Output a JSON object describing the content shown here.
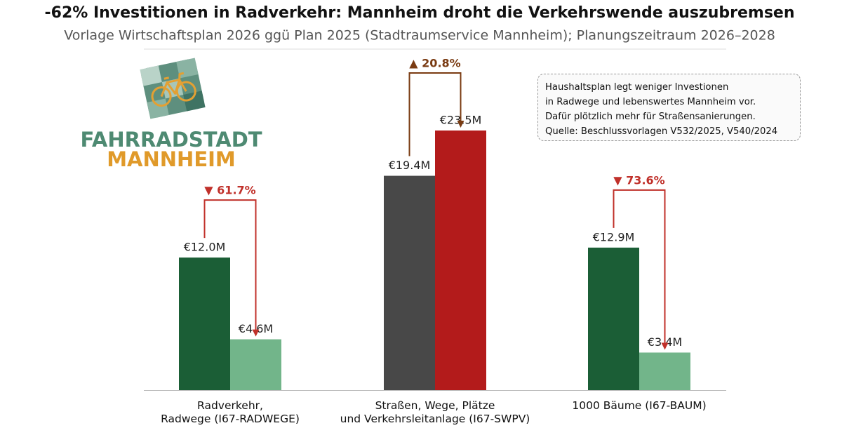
{
  "chart_data": {
    "type": "bar",
    "title": "-62% Investitionen in Radverkehr: Mannheim droht die Verkehrswende auszubremsen",
    "subtitle": "Vorlage Wirtschaftsplan 2026 ggü Plan 2025 (Stadtraumservice Mannheim); Planungszeitraum 2026–2028",
    "categories": [
      "Radverkehr,\nRadwege (I67-RADWEGE)",
      "Straßen, Wege, Plätze\nund Verkehrsleitanlage (I67-SWPV)",
      "1000 Bäume (I67-BAUM)"
    ],
    "series": [
      {
        "colors": [
          "#1b5e36",
          "#484848",
          "#1b5e36"
        ],
        "values": [
          12.0,
          19.4,
          12.9
        ],
        "value_labels": [
          "€12.0M",
          "€19.4M",
          "€12.9M"
        ]
      },
      {
        "colors": [
          "#72b58a",
          "#b31b1b",
          "#72b58a"
        ],
        "values": [
          4.6,
          23.5,
          3.4
        ],
        "value_labels": [
          "€4.6M",
          "€23.5M",
          "€3.4M"
        ]
      }
    ],
    "changes": [
      {
        "label": "▼ 61.7%",
        "color": "#c0302a"
      },
      {
        "label": "▲ 20.8%",
        "color": "#7a3b12"
      },
      {
        "label": "▼ 73.6%",
        "color": "#c0302a"
      }
    ],
    "note": [
      "Haushaltsplan legt weniger Investionen",
      "in Radwege und lebenswertes Mannheim vor.",
      "Dafür plötzlich mehr für Straßensanierungen.",
      "Quelle: Beschlussvorlagen V532/2025, V540/2024"
    ]
  },
  "logo": {
    "line1": "FAHRRADSTADT",
    "line2": "MANNHEIM"
  }
}
